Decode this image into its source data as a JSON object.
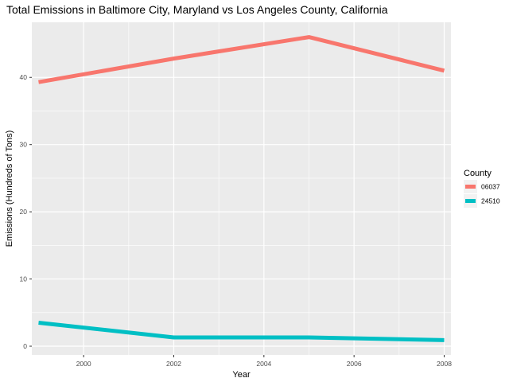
{
  "chart_data": {
    "type": "line",
    "title": "Total Emissions in Baltimore City, Maryland vs Los Angeles County, California",
    "xlabel": "Year",
    "ylabel": "Emissions (Hundreds of Tons)",
    "x": [
      1999,
      2002,
      2005,
      2008
    ],
    "series": [
      {
        "name": "06037",
        "color": "#F8766D",
        "values": [
          39.3,
          42.8,
          46.0,
          41.0
        ]
      },
      {
        "name": "24510",
        "color": "#00BFC4",
        "values": [
          3.5,
          1.3,
          1.3,
          0.9
        ]
      }
    ],
    "x_ticks": [
      2000,
      2002,
      2004,
      2006,
      2008
    ],
    "y_ticks": [
      0,
      10,
      20,
      30,
      40
    ],
    "xlim": [
      1998.85,
      2008.15
    ],
    "ylim": [
      -1.3,
      48.2
    ],
    "grid": true,
    "legend": {
      "title": "County",
      "position": "right"
    },
    "panel_background": "#EBEBEB"
  }
}
